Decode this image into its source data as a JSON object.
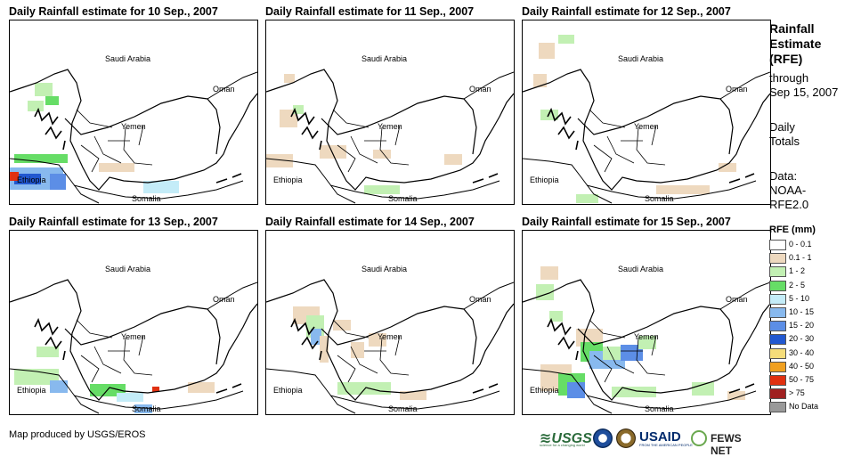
{
  "panels": [
    {
      "title": "Daily Rainfall estimate for 10 Sep., 2007"
    },
    {
      "title": "Daily Rainfall estimate for 11 Sep., 2007"
    },
    {
      "title": "Daily Rainfall estimate for 12 Sep., 2007"
    },
    {
      "title": "Daily Rainfall estimate for 13 Sep., 2007"
    },
    {
      "title": "Daily Rainfall estimate for 14 Sep., 2007"
    },
    {
      "title": "Daily Rainfall estimate for 15 Sep., 2007"
    }
  ],
  "map_labels": {
    "saudi": "Saudi Arabia",
    "oman": "Oman",
    "yemen": "Yemen",
    "ethiopia": "Ethiopia",
    "somalia": "Somalia"
  },
  "sidebar": {
    "title_line1": "Rainfall",
    "title_line2": "Estimate",
    "title_line3": "(RFE)",
    "through": "through",
    "date": "Sep 15, 2007",
    "daily": "Daily",
    "totals": "Totals",
    "data_label": "Data:",
    "data_src1": "NOAA-",
    "data_src2": "RFE2.0"
  },
  "legend": {
    "title": "RFE (mm)",
    "items": [
      {
        "label": "0 - 0.1",
        "color": "#ffffff"
      },
      {
        "label": "0.1 - 1",
        "color": "#eed9bf"
      },
      {
        "label": "1 - 2",
        "color": "#c2f0b3"
      },
      {
        "label": "2 - 5",
        "color": "#66dd66"
      },
      {
        "label": "5 - 10",
        "color": "#c4ecf8"
      },
      {
        "label": "10 - 15",
        "color": "#88b9ee"
      },
      {
        "label": "15 - 20",
        "color": "#5c8ee6"
      },
      {
        "label": "20 - 30",
        "color": "#2258d0"
      },
      {
        "label": "30 - 40",
        "color": "#f5dd7a"
      },
      {
        "label": "40 - 50",
        "color": "#f0a020"
      },
      {
        "label": "50 - 75",
        "color": "#e03010"
      },
      {
        "label": "> 75",
        "color": "#a02020"
      },
      {
        "label": "No Data",
        "color": "#999999"
      }
    ]
  },
  "footer": {
    "credit": "Map produced by USGS/EROS",
    "usgs": "≋USGS",
    "usgs_tag": "science for a changing world",
    "usaid": "USAID",
    "usaid_tag": "FROM THE AMERICAN PEOPLE",
    "fews": "FEWS NET"
  }
}
